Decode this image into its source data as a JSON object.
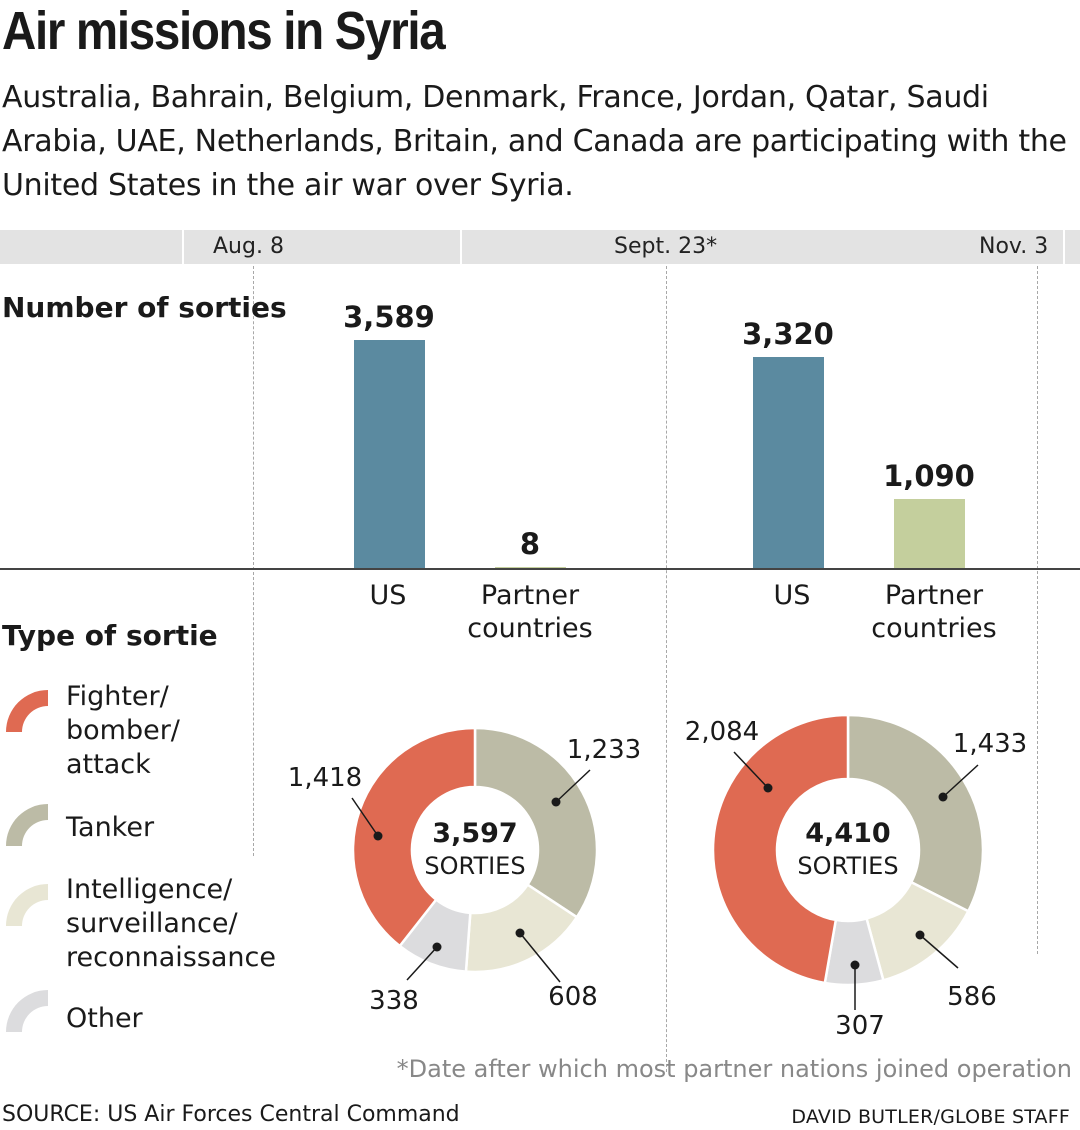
{
  "title": "Air missions in Syria",
  "subtitle": "Australia, Bahrain, Belgium, Denmark, France, Jordan, Qatar, Saudi Arabia, UAE, Netherlands, Britain, and Canada are participating with the United States in the air war over Syria.",
  "timeline": {
    "dates": [
      "Aug. 8",
      "Sept. 23*",
      "Nov. 3"
    ]
  },
  "colors": {
    "us_bar": "#5b8aa0",
    "partner_bar": "#c4cf9d",
    "fighter": "#df6a52",
    "tanker": "#bcbba6",
    "isr": "#e8e6d4",
    "other": "#dcdcde",
    "band": "#e3e3e3"
  },
  "chart_data": [
    {
      "type": "bar",
      "title": "Number of sorties",
      "categories": [
        "US",
        "Partner countries"
      ],
      "series": [
        {
          "name": "Aug. 8 – Sept. 23",
          "values": [
            3589,
            8
          ],
          "labels": [
            "3,589",
            "8"
          ]
        },
        {
          "name": "Sept. 23 – Nov. 3",
          "values": [
            3320,
            1090
          ],
          "labels": [
            "3,320",
            "1,090"
          ]
        }
      ],
      "ylim": [
        0,
        3589
      ],
      "grid": false
    },
    {
      "type": "pie",
      "title": "Type of sortie",
      "legend": [
        "Fighter/\nbomber/\nattack",
        "Tanker",
        "Intelligence/\nsurveillance/\nreconnaissance",
        "Other"
      ],
      "legend_placement": "left",
      "donuts": [
        {
          "center_value": "3,597",
          "center_label": "SORTIES",
          "slices": [
            {
              "category": "Fighter/bomber/attack",
              "value": 1418,
              "label": "1,418"
            },
            {
              "category": "Tanker",
              "value": 1233,
              "label": "1,233"
            },
            {
              "category": "Intelligence/surveillance/reconnaissance",
              "value": 608,
              "label": "608"
            },
            {
              "category": "Other",
              "value": 338,
              "label": "338"
            }
          ]
        },
        {
          "center_value": "4,410",
          "center_label": "SORTIES",
          "slices": [
            {
              "category": "Fighter/bomber/attack",
              "value": 2084,
              "label": "2,084"
            },
            {
              "category": "Tanker",
              "value": 1433,
              "label": "1,433"
            },
            {
              "category": "Intelligence/surveillance/reconnaissance",
              "value": 586,
              "label": "586"
            },
            {
              "category": "Other",
              "value": 307,
              "label": "307"
            }
          ]
        }
      ]
    }
  ],
  "footnote": "*Date after which most partner nations joined operation",
  "source": "SOURCE: US Air Forces Central Command",
  "credit": "DAVID BUTLER/GLOBE STAFF"
}
